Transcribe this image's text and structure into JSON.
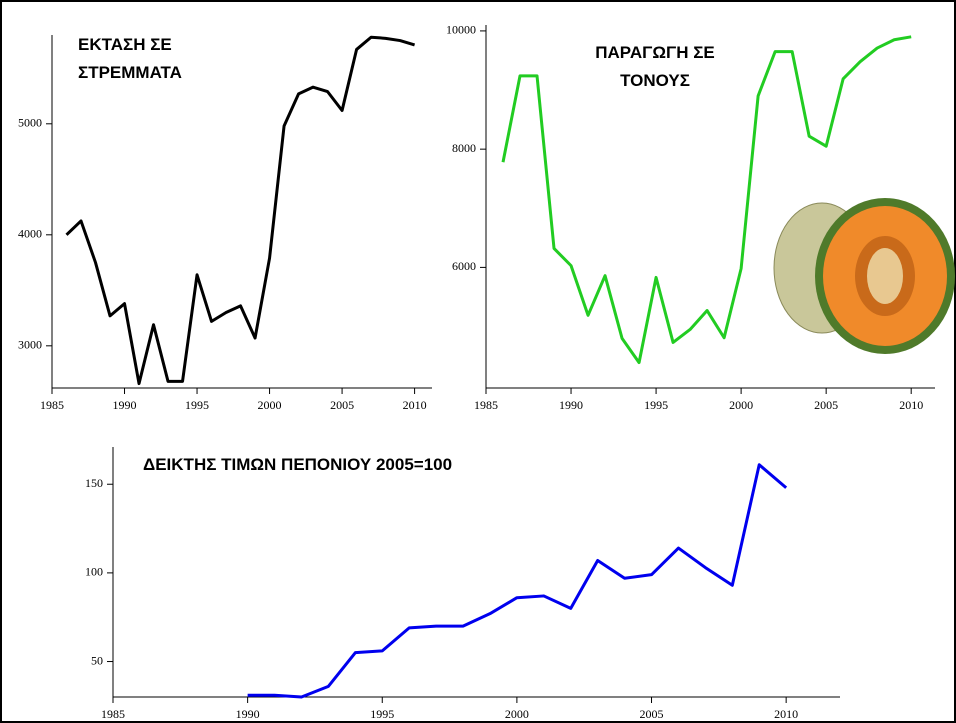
{
  "chart_data": [
    {
      "type": "line",
      "title": [
        "ΕΚΤΑΣΗ ΣΕ",
        "ΣΤΡΕΜΜΑΤΑ"
      ],
      "color": "#000000",
      "x": [
        1986,
        1987,
        1988,
        1989,
        1990,
        1991,
        1992,
        1993,
        1994,
        1995,
        1996,
        1997,
        1998,
        1999,
        2000,
        2001,
        2002,
        2003,
        2004,
        2005,
        2006,
        2007,
        2008,
        2009,
        2010
      ],
      "values": [
        4000,
        4125,
        3750,
        3270,
        3380,
        2660,
        3190,
        2680,
        2680,
        3640,
        3220,
        3300,
        3360,
        3070,
        3790,
        4980,
        5270,
        5330,
        5290,
        5120,
        5670,
        5780,
        5770,
        5750,
        5710
      ],
      "xlim": [
        1985,
        2011.2
      ],
      "ylim": [
        2620,
        5800
      ],
      "xticks": [
        1985,
        1990,
        1995,
        2000,
        2005,
        2010
      ],
      "yticks": [
        3000,
        4000,
        5000
      ]
    },
    {
      "type": "line",
      "title": [
        "ΠΑΡΑΓΩΓΗ ΣΕ",
        "ΤΟΝΟΥΣ"
      ],
      "color": "#22cc22",
      "x": [
        1986,
        1987,
        1988,
        1989,
        1990,
        1991,
        1992,
        1993,
        1994,
        1995,
        1996,
        1997,
        1998,
        1999,
        2000,
        2001,
        2002,
        2003,
        2004,
        2005,
        2006,
        2007,
        2008,
        2009,
        2010
      ],
      "values": [
        7780,
        9240,
        9240,
        6320,
        6030,
        5190,
        5860,
        4800,
        4390,
        5830,
        4730,
        4950,
        5270,
        4810,
        5980,
        8900,
        9650,
        9650,
        8220,
        8050,
        9190,
        9480,
        9710,
        9850,
        9900
      ],
      "xlim": [
        1985,
        2011.4
      ],
      "ylim": [
        3960,
        10100
      ],
      "xticks": [
        1985,
        1990,
        1995,
        2000,
        2005,
        2010
      ],
      "yticks": [
        6000,
        8000,
        10000
      ]
    },
    {
      "type": "line",
      "title": [
        "ΔΕΙΚΤΗΣ ΤΙΜΩΝ ΠΕΠΟΝΙΟΥ 2005=100"
      ],
      "color": "#0000ee",
      "x": [
        1990,
        1991,
        1992,
        1993,
        1994,
        1995,
        1996,
        1997,
        1998,
        1999,
        2000,
        2001,
        2002,
        2003,
        2004,
        2005,
        2006,
        2007,
        2008,
        2009,
        2010
      ],
      "values": [
        31,
        31,
        30,
        36,
        55,
        56,
        69,
        70,
        70,
        77,
        86,
        87,
        80,
        107,
        97,
        99,
        114,
        103,
        93,
        161,
        148
      ],
      "xlim": [
        1985,
        2012
      ],
      "ylim": [
        30,
        171
      ],
      "xticks": [
        1985,
        1990,
        1995,
        2000,
        2005,
        2010
      ],
      "yticks": [
        50,
        100,
        150
      ]
    }
  ]
}
